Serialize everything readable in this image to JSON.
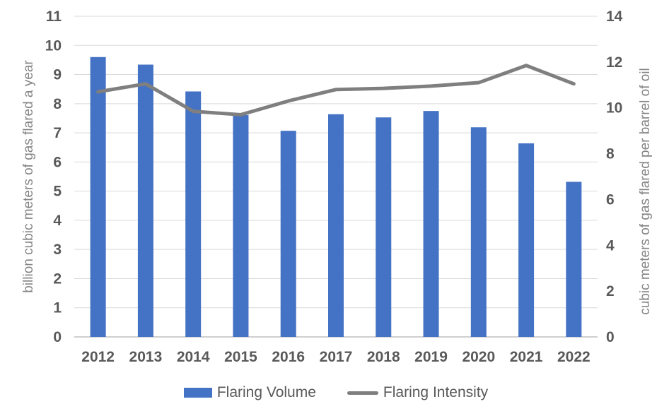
{
  "chart_data": {
    "type": "bar",
    "subtype": "bar-line-combo",
    "title": "",
    "categories": [
      "2012",
      "2013",
      "2014",
      "2015",
      "2016",
      "2017",
      "2018",
      "2019",
      "2020",
      "2021",
      "2022"
    ],
    "series": [
      {
        "name": "Flaring Volume",
        "type": "bar",
        "axis": "left",
        "color": "#4472C4",
        "values": [
          9.6,
          9.34,
          8.42,
          7.61,
          7.07,
          7.64,
          7.53,
          7.75,
          7.19,
          6.64,
          5.32
        ]
      },
      {
        "name": "Flaring Intensity",
        "type": "line",
        "axis": "right",
        "color": "#7F7F7F",
        "values": [
          10.7,
          11.05,
          9.85,
          9.7,
          10.3,
          10.8,
          10.85,
          10.95,
          11.1,
          11.85,
          11.05
        ]
      }
    ],
    "left_axis": {
      "label": "billion cubic meters of gas flared a year",
      "min": 0,
      "max": 11,
      "tick_step": 1,
      "tick_labels": [
        "0",
        "1",
        "2",
        "3",
        "4",
        "5",
        "6",
        "7",
        "8",
        "9",
        "10",
        "11"
      ]
    },
    "right_axis": {
      "label": "cubic meters of gas flared per barrel of oil",
      "min": 0,
      "max": 14,
      "tick_step": 2,
      "tick_labels": [
        "0",
        "2",
        "4",
        "6",
        "8",
        "10",
        "12",
        "14"
      ]
    },
    "legend": {
      "position": "bottom",
      "entries": [
        "Flaring Volume",
        "Flaring Intensity"
      ]
    },
    "grid": "horizontal",
    "colors": {
      "bar": "#4472C4",
      "line": "#7F7F7F",
      "tick_label": "#595959",
      "axis_title": "#858585",
      "gridline": "#D9D9D9",
      "axis_line": "#BFBFBF",
      "background": "#FFFFFF"
    }
  }
}
